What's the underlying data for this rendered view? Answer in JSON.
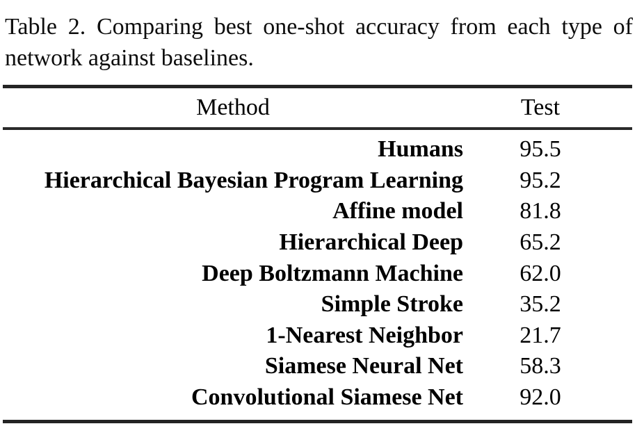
{
  "caption": {
    "line1": "Table 2.  Comparing best one-shot accuracy from each type of",
    "line2": "network against baselines."
  },
  "table": {
    "columns": {
      "method": "Method",
      "test": "Test"
    },
    "rows": [
      {
        "method": "Humans",
        "test": "95.5"
      },
      {
        "method": "Hierarchical Bayesian Program Learning",
        "test": "95.2"
      },
      {
        "method": "Affine model",
        "test": "81.8"
      },
      {
        "method": "Hierarchical Deep",
        "test": "65.2"
      },
      {
        "method": "Deep Boltzmann Machine",
        "test": "62.0"
      },
      {
        "method": "Simple Stroke",
        "test": "35.2"
      },
      {
        "method": "1-Nearest Neighbor",
        "test": "21.7"
      },
      {
        "method": "Siamese Neural Net",
        "test": "58.3"
      },
      {
        "method": "Convolutional Siamese Net",
        "test": "92.0"
      }
    ]
  },
  "colors": {
    "background": "#ffffff",
    "text": "#000000",
    "rule": "#242424"
  }
}
